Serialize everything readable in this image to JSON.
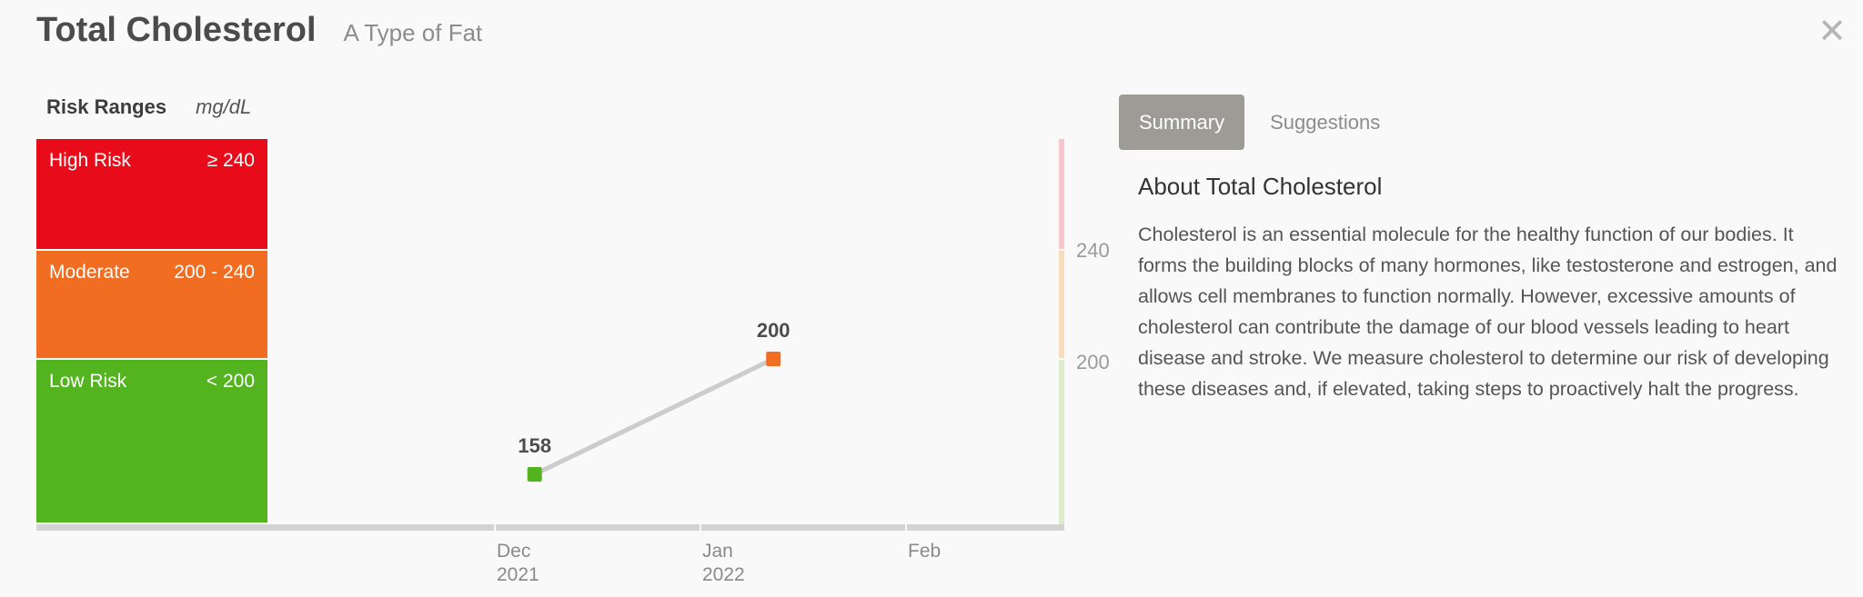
{
  "header": {
    "title": "Total Cholesterol",
    "subtitle": "A Type of Fat",
    "close_icon": "close-icon"
  },
  "risk": {
    "title": "Risk Ranges",
    "unit": "mg/dL",
    "bands": [
      {
        "label": "High Risk",
        "range": "≥ 240",
        "color": "#e80c1b"
      },
      {
        "label": "Moderate",
        "range": "200 - 240",
        "color": "#f06d22"
      },
      {
        "label": "Low Risk",
        "range": "< 200",
        "color": "#54b41f"
      }
    ]
  },
  "chart_data": {
    "type": "line",
    "points": [
      {
        "x": "2021-12-07",
        "y": 158,
        "label": "158",
        "color": "#54b41f"
      },
      {
        "x": "2022-01-12",
        "y": 200,
        "label": "200",
        "color": "#f06d22"
      }
    ],
    "x_ticks": [
      {
        "month": "Dec",
        "year": "2021"
      },
      {
        "month": "Jan",
        "year": "2022"
      },
      {
        "month": "Feb",
        "year": ""
      }
    ],
    "reference_lines": [
      "240",
      "200"
    ],
    "line_color": "#cccccc"
  },
  "tabs": [
    {
      "label": "Summary",
      "active": true
    },
    {
      "label": "Suggestions",
      "active": false
    }
  ],
  "about": {
    "title": "About Total Cholesterol",
    "body": "Cholesterol is an essential molecule for the healthy function of our bodies. It forms the building blocks of many hormones, like testosterone and estrogen, and allows cell membranes to function normally. However, excessive amounts of cholesterol can contribute the damage of our blood vessels leading to heart disease and stroke. We measure cholesterol to determine our risk of developing these diseases and, if elevated, taking steps to proactively halt the progress."
  }
}
